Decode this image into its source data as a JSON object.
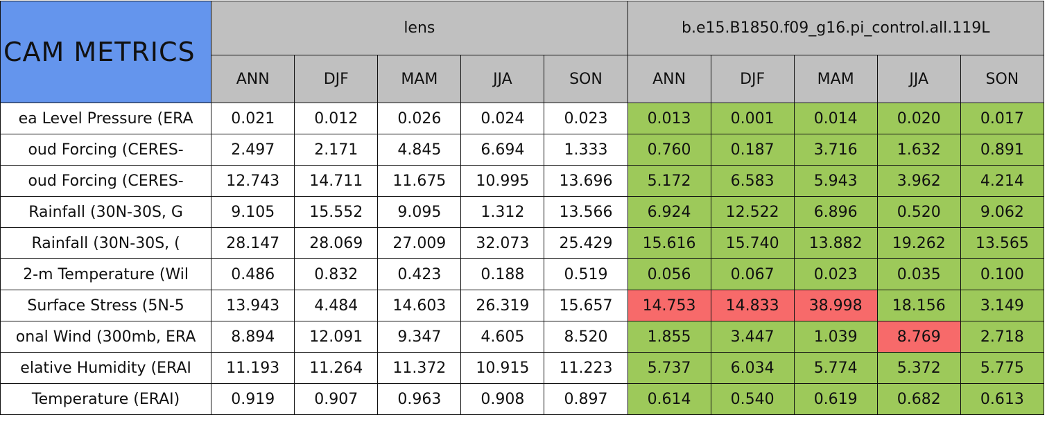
{
  "table": {
    "title": "CAM METRICS",
    "groups": [
      "lens",
      "b.e15.B1850.f09_g16.pi_control.all.119L"
    ],
    "seasons": [
      "ANN",
      "DJF",
      "MAM",
      "JJA",
      "SON"
    ],
    "colors": {
      "header": "#c0c0c0",
      "title": "#6495ed",
      "lens": "#ffffff",
      "good": "#9dc95a",
      "bad": "#f76a6a"
    },
    "rows": [
      {
        "label": "ea Level Pressure (ERA",
        "values": [
          "0.021",
          "0.012",
          "0.026",
          "0.024",
          "0.023",
          "0.013",
          "0.001",
          "0.014",
          "0.020",
          "0.017"
        ],
        "status": [
          "good",
          "good",
          "good",
          "good",
          "good"
        ]
      },
      {
        "label": "oud Forcing (CERES-",
        "values": [
          "2.497",
          "2.171",
          "4.845",
          "6.694",
          "1.333",
          "0.760",
          "0.187",
          "3.716",
          "1.632",
          "0.891"
        ],
        "status": [
          "good",
          "good",
          "good",
          "good",
          "good"
        ]
      },
      {
        "label": "oud Forcing (CERES-",
        "values": [
          "12.743",
          "14.711",
          "11.675",
          "10.995",
          "13.696",
          "5.172",
          "6.583",
          "5.943",
          "3.962",
          "4.214"
        ],
        "status": [
          "good",
          "good",
          "good",
          "good",
          "good"
        ]
      },
      {
        "label": "Rainfall (30N-30S, G",
        "values": [
          "9.105",
          "15.552",
          "9.095",
          "1.312",
          "13.566",
          "6.924",
          "12.522",
          "6.896",
          "0.520",
          "9.062"
        ],
        "status": [
          "good",
          "good",
          "good",
          "good",
          "good"
        ]
      },
      {
        "label": "Rainfall (30N-30S, (",
        "values": [
          "28.147",
          "28.069",
          "27.009",
          "32.073",
          "25.429",
          "15.616",
          "15.740",
          "13.882",
          "19.262",
          "13.565"
        ],
        "status": [
          "good",
          "good",
          "good",
          "good",
          "good"
        ]
      },
      {
        "label": "2-m Temperature (Wil",
        "values": [
          "0.486",
          "0.832",
          "0.423",
          "0.188",
          "0.519",
          "0.056",
          "0.067",
          "0.023",
          "0.035",
          "0.100"
        ],
        "status": [
          "good",
          "good",
          "good",
          "good",
          "good"
        ]
      },
      {
        "label": "Surface Stress (5N-5",
        "values": [
          "13.943",
          "4.484",
          "14.603",
          "26.319",
          "15.657",
          "14.753",
          "14.833",
          "38.998",
          "18.156",
          "3.149"
        ],
        "status": [
          "bad",
          "bad",
          "bad",
          "good",
          "good"
        ]
      },
      {
        "label": "onal Wind (300mb, ERA",
        "values": [
          "8.894",
          "12.091",
          "9.347",
          "4.605",
          "8.520",
          "1.855",
          "3.447",
          "1.039",
          "8.769",
          "2.718"
        ],
        "status": [
          "good",
          "good",
          "good",
          "bad",
          "good"
        ]
      },
      {
        "label": "elative Humidity (ERAI",
        "values": [
          "11.193",
          "11.264",
          "11.372",
          "10.915",
          "11.223",
          "5.737",
          "6.034",
          "5.774",
          "5.372",
          "5.775"
        ],
        "status": [
          "good",
          "good",
          "good",
          "good",
          "good"
        ]
      },
      {
        "label": "Temperature (ERAI)",
        "values": [
          "0.919",
          "0.907",
          "0.963",
          "0.908",
          "0.897",
          "0.614",
          "0.540",
          "0.619",
          "0.682",
          "0.613"
        ],
        "status": [
          "good",
          "good",
          "good",
          "good",
          "good"
        ]
      }
    ]
  }
}
